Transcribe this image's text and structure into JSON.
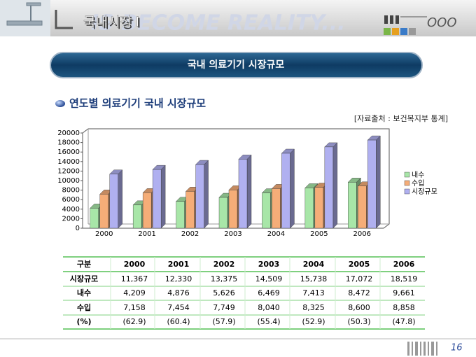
{
  "header": {
    "title": "국내시장 Ⅰ",
    "motto": "IS BECOME REALITY...",
    "mark": "OOO"
  },
  "banner": "국내 의료기기 시장규모",
  "subtitle": "연도별 의료기기 국내 시장규모",
  "source": "[자료출처 : 보건복지부 통계]",
  "chart_data": {
    "type": "bar",
    "categories": [
      "2000",
      "2001",
      "2002",
      "2003",
      "2004",
      "2005",
      "2006"
    ],
    "series": [
      {
        "name": "내수",
        "color": "#a8e6a8",
        "values": [
          4209,
          4876,
          5626,
          6469,
          7413,
          8472,
          9661
        ]
      },
      {
        "name": "수입",
        "color": "#f5ad78",
        "values": [
          7158,
          7454,
          7749,
          8040,
          8325,
          8600,
          8858
        ]
      },
      {
        "name": "시장규모",
        "color": "#b0b0f0",
        "values": [
          11367,
          12330,
          13375,
          14509,
          15738,
          17072,
          18519
        ]
      }
    ],
    "ylim": [
      0,
      20000
    ],
    "yticks": [
      0,
      2000,
      4000,
      6000,
      8000,
      10000,
      12000,
      14000,
      16000,
      18000,
      20000
    ],
    "legend": "right"
  },
  "table": {
    "header": [
      "구분",
      "2000",
      "2001",
      "2002",
      "2003",
      "2004",
      "2005",
      "2006"
    ],
    "rows": [
      [
        "시장규모",
        "11,367",
        "12,330",
        "13,375",
        "14,509",
        "15,738",
        "17,072",
        "18,519"
      ],
      [
        "내수",
        "4,209",
        "4,876",
        "5,626",
        "6,469",
        "7,413",
        "8,472",
        "9,661"
      ],
      [
        "수입",
        "7,158",
        "7,454",
        "7,749",
        "8,040",
        "8,325",
        "8,600",
        "8,858"
      ],
      [
        "(%)",
        "(62.9)",
        "(60.4)",
        "(57.9)",
        "(55.4)",
        "(52.9)",
        "(50.3)",
        "(47.8)"
      ]
    ]
  },
  "page_number": "16"
}
